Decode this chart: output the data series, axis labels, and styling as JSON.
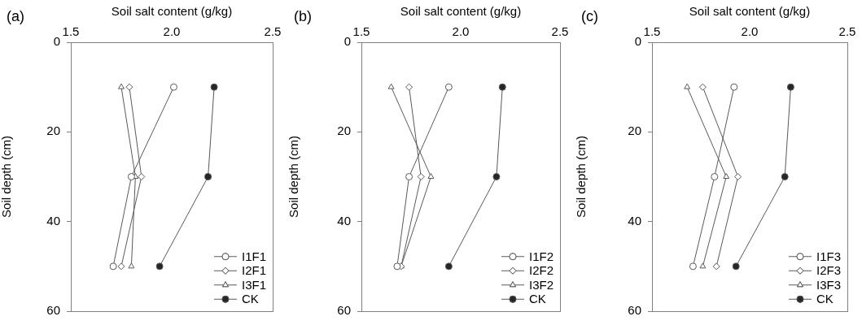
{
  "chart_data": [
    {
      "type": "line",
      "annotations": [
        "(a)"
      ],
      "xlabel": "Soil salt content (g/kg)",
      "ylabel": "Soil depth (cm)",
      "xlim": [
        1.5,
        2.5
      ],
      "xticks": [
        {
          "value": 1.5,
          "label": "1.5"
        },
        {
          "value": 2.0,
          "label": "2.0"
        },
        {
          "value": 2.5,
          "label": "2.5"
        }
      ],
      "ylim": [
        60,
        0
      ],
      "yticks": [
        0,
        20,
        40,
        60
      ],
      "legend": "bottom right",
      "grid": false,
      "line_style": "solid",
      "series": [
        {
          "name": "I1F1",
          "color": "#ffffff",
          "marker": "circle",
          "x": [
            2.01,
            1.8,
            1.71
          ],
          "values": [
            10,
            30,
            50
          ]
        },
        {
          "name": "I2F1",
          "color": "#ffffff",
          "marker": "diamond",
          "x": [
            1.79,
            1.85,
            1.75
          ],
          "values": [
            10,
            30,
            50
          ]
        },
        {
          "name": "I3F1",
          "color": "#ffffff",
          "marker": "triangle",
          "x": [
            1.75,
            1.82,
            1.8
          ],
          "values": [
            10,
            30,
            50
          ]
        },
        {
          "name": "CK",
          "color": "#262626",
          "marker": "circle",
          "x": [
            2.21,
            2.18,
            1.94
          ],
          "values": [
            10,
            30,
            50
          ]
        }
      ]
    },
    {
      "type": "line",
      "annotations": [
        "(b)"
      ],
      "xlabel": "Soil salt content (g/kg)",
      "ylabel": "Soil depth (cm)",
      "xlim": [
        1.5,
        2.5
      ],
      "xticks": [
        {
          "value": 1.5,
          "label": "1.5"
        },
        {
          "value": 2.0,
          "label": "2.0"
        },
        {
          "value": 2.5,
          "label": "2.5"
        }
      ],
      "ylim": [
        60,
        0
      ],
      "yticks": [
        0,
        20,
        40,
        60
      ],
      "legend": "bottom right",
      "grid": false,
      "line_style": "solid",
      "series": [
        {
          "name": "I1F2",
          "color": "#ffffff",
          "marker": "circle",
          "x": [
            1.94,
            1.74,
            1.68
          ],
          "values": [
            10,
            30,
            50
          ]
        },
        {
          "name": "I2F2",
          "color": "#ffffff",
          "marker": "diamond",
          "x": [
            1.74,
            1.8,
            1.7
          ],
          "values": [
            10,
            30,
            50
          ]
        },
        {
          "name": "I3F2",
          "color": "#ffffff",
          "marker": "triangle",
          "x": [
            1.65,
            1.85,
            1.7
          ],
          "values": [
            10,
            30,
            50
          ]
        },
        {
          "name": "CK",
          "color": "#262626",
          "marker": "circle",
          "x": [
            2.21,
            2.18,
            1.94
          ],
          "values": [
            10,
            30,
            50
          ]
        }
      ]
    },
    {
      "type": "line",
      "annotations": [
        "(c)"
      ],
      "xlabel": "Soil salt content (g/kg)",
      "ylabel": "Soil depth (cm)",
      "xlim": [
        1.5,
        2.5
      ],
      "xticks": [
        {
          "value": 1.5,
          "label": "1.5"
        },
        {
          "value": 2.0,
          "label": "2.0"
        },
        {
          "value": 2.5,
          "label": "2.5"
        }
      ],
      "ylim": [
        60,
        0
      ],
      "yticks": [
        0,
        20,
        40,
        60
      ],
      "legend": "bottom right",
      "grid": false,
      "line_style": "solid",
      "series": [
        {
          "name": "I1F3",
          "color": "#ffffff",
          "marker": "circle",
          "x": [
            1.92,
            1.82,
            1.71
          ],
          "values": [
            10,
            30,
            50
          ]
        },
        {
          "name": "I2F3",
          "color": "#ffffff",
          "marker": "diamond",
          "x": [
            1.76,
            1.94,
            1.83
          ],
          "values": [
            10,
            30,
            50
          ]
        },
        {
          "name": "I3F3",
          "color": "#ffffff",
          "marker": "triangle",
          "x": [
            1.68,
            1.88,
            1.76
          ],
          "values": [
            10,
            30,
            50
          ]
        },
        {
          "name": "CK",
          "color": "#262626",
          "marker": "circle",
          "x": [
            2.21,
            2.18,
            1.93
          ],
          "values": [
            10,
            30,
            50
          ]
        }
      ]
    }
  ]
}
